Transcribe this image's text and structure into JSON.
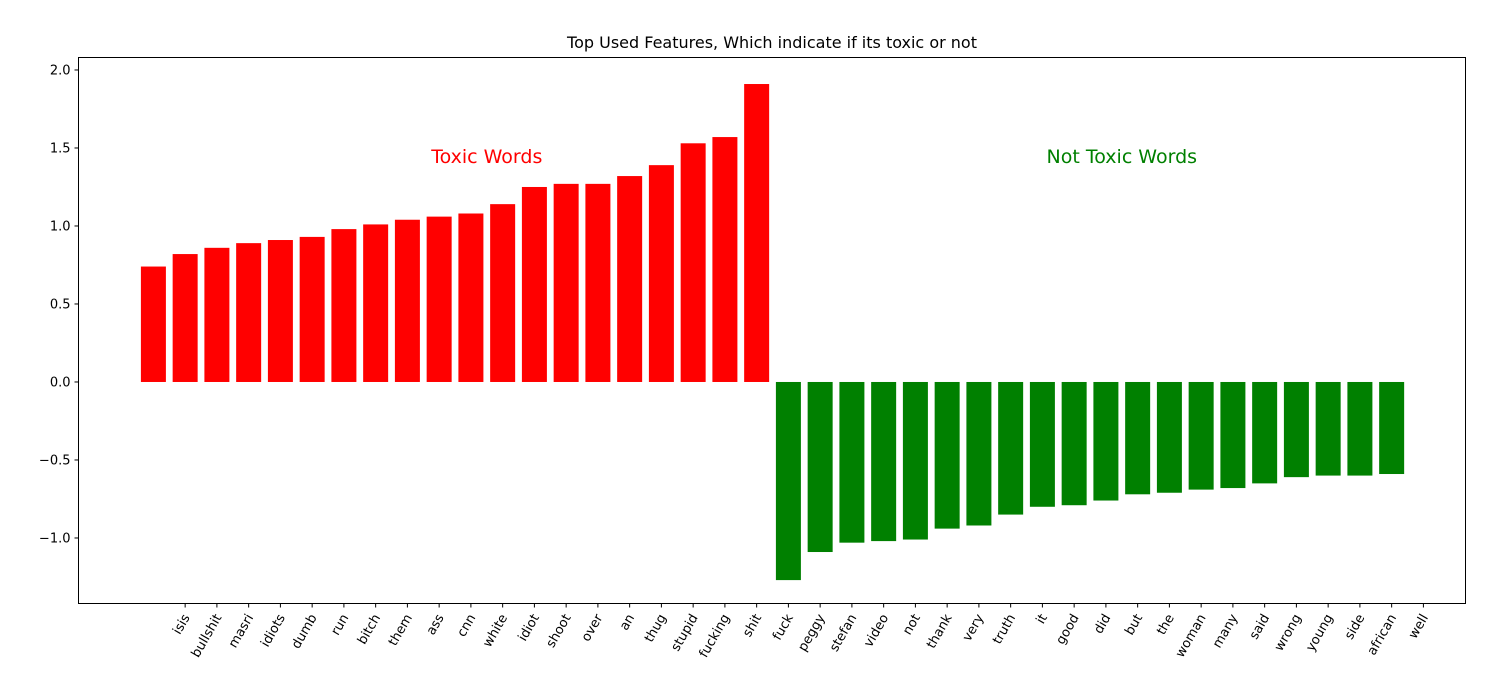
{
  "chart_data": {
    "type": "bar",
    "title": "Top Used Features, Which indicate if its toxic or not",
    "xlabel": "",
    "ylabel": "",
    "ylim": [
      -1.42,
      2.08
    ],
    "yticks": [
      -1.0,
      -0.5,
      0.0,
      0.5,
      1.0,
      1.5,
      2.0
    ],
    "ytick_labels": [
      "−1.0",
      "−0.5",
      "0.0",
      "0.5",
      "1.0",
      "1.5",
      "2.0"
    ],
    "grid": false,
    "tick_label_rotation": 60,
    "colors": {
      "toxic": "#ff0000",
      "not_toxic": "#008000"
    },
    "tick_labels": [
      "isis",
      "bullshit",
      "masri",
      "idiots",
      "dumb",
      "run",
      "bitch",
      "them",
      "ass",
      "cnn",
      "white",
      "idiot",
      "shoot",
      "over",
      "an",
      "thug",
      "stupid",
      "fucking",
      "shit",
      "fuck",
      "peggy",
      "stefan",
      "video",
      "not",
      "thank",
      "very",
      "truth",
      "it",
      "good",
      "did",
      "but",
      "the",
      "woman",
      "many",
      "said",
      "wrong",
      "young",
      "side",
      "african",
      "well"
    ],
    "series": [
      {
        "values": [
          0.74,
          0.82,
          0.86,
          0.89,
          0.91,
          0.93,
          0.98,
          1.01,
          1.04,
          1.06,
          1.08,
          1.14,
          1.25,
          1.27,
          1.27,
          1.32,
          1.39,
          1.53,
          1.57,
          1.91
        ],
        "color": "#ff0000"
      },
      {
        "values": [
          -1.27,
          -1.09,
          -1.03,
          -1.02,
          -1.01,
          -0.94,
          -0.92,
          -0.85,
          -0.8,
          -0.79,
          -0.76,
          -0.72,
          -0.71,
          -0.69,
          -0.68,
          -0.65,
          -0.61,
          -0.6,
          -0.6,
          -0.59
        ],
        "color": "#008000"
      }
    ],
    "annotations": [
      {
        "text": "Toxic Words",
        "x_index": 10.5,
        "y": 1.45,
        "color": "#ff0000"
      },
      {
        "text": "Not Toxic Words",
        "x_index": 30.5,
        "y": 1.45,
        "color": "#008000"
      }
    ]
  }
}
